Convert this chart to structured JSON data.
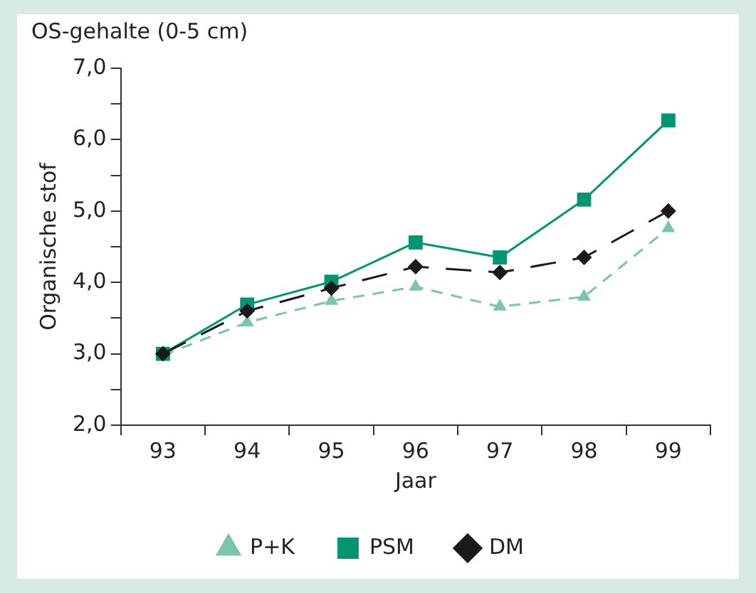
{
  "chart_data": {
    "type": "line",
    "title": "OS-gehalte (0-5 cm)",
    "xlabel": "Jaar",
    "ylabel": "Organische stof",
    "categories": [
      "93",
      "94",
      "95",
      "96",
      "97",
      "98",
      "99"
    ],
    "series": [
      {
        "name": "P+K",
        "color": "#7cc4ac",
        "marker": "triangle",
        "line_style": "dashed",
        "values": [
          2.98,
          3.44,
          3.74,
          3.94,
          3.66,
          3.8,
          4.76
        ]
      },
      {
        "name": "PSM",
        "color": "#009673",
        "marker": "square",
        "line_style": "solid",
        "values": [
          3.0,
          3.69,
          4.01,
          4.56,
          4.35,
          5.16,
          6.27
        ]
      },
      {
        "name": "DM",
        "color": "#1a1a1a",
        "marker": "diamond",
        "line_style": "dashed",
        "values": [
          3.0,
          3.6,
          3.92,
          4.22,
          4.14,
          4.35,
          5.0
        ]
      }
    ],
    "ylim": [
      2,
      7
    ],
    "yticks": [
      {
        "value": 2,
        "label": "2,0"
      },
      {
        "value": 2.5,
        "label": null
      },
      {
        "value": 3,
        "label": "3,0"
      },
      {
        "value": 3.5,
        "label": null
      },
      {
        "value": 4,
        "label": "4,0"
      },
      {
        "value": 4.5,
        "label": null
      },
      {
        "value": 5,
        "label": "5,0"
      },
      {
        "value": 5.5,
        "label": null
      },
      {
        "value": 6,
        "label": "6,0"
      },
      {
        "value": 6.5,
        "label": null
      },
      {
        "value": 7,
        "label": "7,0"
      }
    ],
    "grid": false,
    "legend": "bottom"
  }
}
